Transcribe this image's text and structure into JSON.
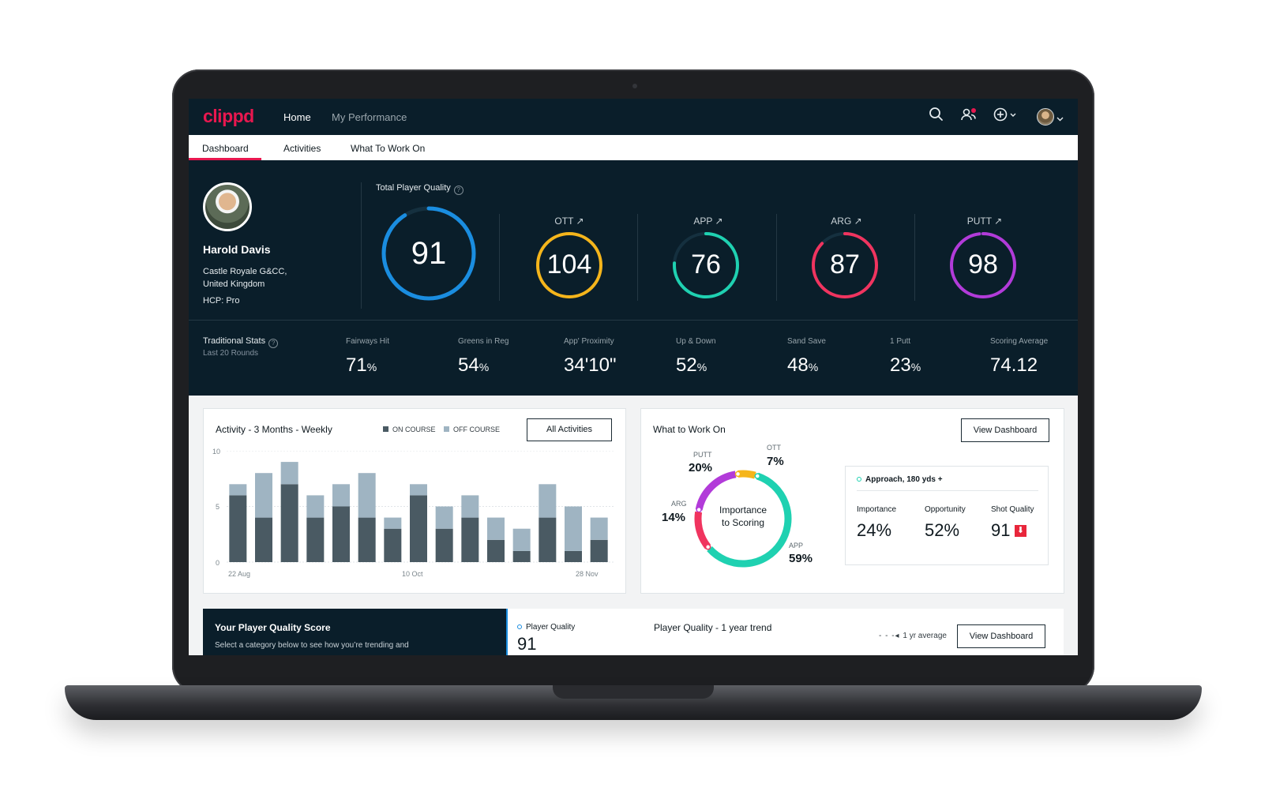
{
  "app": {
    "logo": "clippd",
    "nav": [
      "Home",
      "My Performance"
    ],
    "tabs": [
      "Dashboard",
      "Activities",
      "What To Work On"
    ]
  },
  "player": {
    "name": "Harold Davis",
    "club_line1": "Castle Royale G&CC,",
    "club_line2": "United Kingdom",
    "hcp": "HCP: Pro"
  },
  "quality": {
    "title": "Total Player Quality",
    "help": "?",
    "total": {
      "value": "91",
      "level": 0.91,
      "color": "#1a8de0"
    },
    "categories": [
      {
        "label": "OTT ↗",
        "value": "104",
        "level": 1.0,
        "color": "#f5b51b"
      },
      {
        "label": "APP ↗",
        "value": "76",
        "level": 0.76,
        "color": "#1fd1b1"
      },
      {
        "label": "ARG ↗",
        "value": "87",
        "level": 0.87,
        "color": "#f0345f"
      },
      {
        "label": "PUTT ↗",
        "value": "98",
        "level": 0.98,
        "color": "#b23bd9"
      }
    ]
  },
  "traditional": {
    "title": "Traditional Stats",
    "subtitle": "Last 20 Rounds",
    "stats": [
      {
        "label": "Fairways Hit",
        "value": "71",
        "unit": "%"
      },
      {
        "label": "Greens in Reg",
        "value": "54",
        "unit": "%"
      },
      {
        "label": "App' Proximity",
        "value": "34'10\"",
        "unit": ""
      },
      {
        "label": "Up & Down",
        "value": "52",
        "unit": "%"
      },
      {
        "label": "Sand Save",
        "value": "48",
        "unit": "%"
      },
      {
        "label": "1 Putt",
        "value": "23",
        "unit": "%"
      },
      {
        "label": "Scoring Average",
        "value": "74.12",
        "unit": ""
      }
    ]
  },
  "activity": {
    "title": "Activity - 3 Months - Weekly",
    "legend_on": "ON COURSE",
    "legend_off": "OFF COURSE",
    "button": "All Activities",
    "colors": {
      "on": "#4a5a63",
      "off": "#9fb4c2"
    }
  },
  "chart_data": {
    "type": "bar",
    "stacked": true,
    "ylim": [
      0,
      10
    ],
    "yticks": [
      "10",
      "5",
      "0"
    ],
    "xtick_labels": [
      "22 Aug",
      "10 Oct",
      "28 Nov"
    ],
    "xtick_index": [
      0,
      7,
      14
    ],
    "series": [
      {
        "name": "ON COURSE",
        "values": [
          6,
          4,
          7,
          4,
          5,
          4,
          3,
          6,
          3,
          4,
          2,
          1,
          4,
          1,
          2
        ]
      },
      {
        "name": "OFF COURSE",
        "values": [
          1,
          4,
          2,
          2,
          2,
          4,
          1,
          1,
          2,
          2,
          2,
          2,
          3,
          4,
          2
        ]
      }
    ]
  },
  "work_on": {
    "title": "What to Work On",
    "button": "View Dashboard",
    "center_line1": "Importance",
    "center_line2": "to Scoring",
    "segments": [
      {
        "label": "PUTT",
        "pct": "20%",
        "value": 20,
        "color": "#b23bd9"
      },
      {
        "label": "OTT",
        "pct": "7%",
        "value": 7,
        "color": "#f5b51b"
      },
      {
        "label": "APP",
        "pct": "59%",
        "value": 59,
        "color": "#1fd1b1"
      },
      {
        "label": "ARG",
        "pct": "14%",
        "value": 14,
        "color": "#f0345f"
      }
    ],
    "focus": {
      "title": "Approach, 180 yds +",
      "importance_label": "Importance",
      "importance": "24%",
      "opportunity_label": "Opportunity",
      "opportunity": "52%",
      "quality_label": "Shot Quality",
      "quality": "91",
      "trend_icon": "arrow-down-icon",
      "trend_glyph": "⬇"
    }
  },
  "pq_section": {
    "title": "Your Player Quality Score",
    "subtitle": "Select a category below to see how you’re trending and",
    "pq_label": "Player Quality",
    "pq_value": "91",
    "trend_title": "Player Quality - 1 year trend",
    "avg_label": "1 yr average",
    "button": "View Dashboard"
  }
}
